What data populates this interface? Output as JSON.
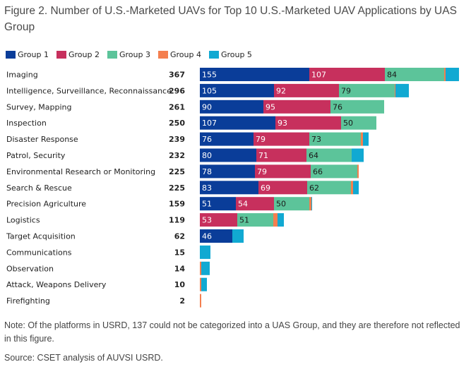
{
  "figure": {
    "title": "Figure 2. Number of U.S.-Marketed UAVs for Top 10 U.S.-Marketed UAV Applications by UAS Group",
    "note": "Note: Of the platforms in USRD, 137 could not be categorized into a UAS Group, and they are therefore not reflected in this figure.",
    "source": "Source: CSET analysis of AUVSI USRD."
  },
  "chart_data": {
    "type": "bar",
    "orientation": "horizontal",
    "stacked": true,
    "title": "Number of U.S.-Marketed UAVs for Top 10 U.S.-Marketed UAV Applications by UAS Group",
    "legend_position": "top-left",
    "categories": [
      "Imaging",
      "Intelligence, Surveillance, Reconnaissance",
      "Survey, Mapping",
      "Inspection",
      "Disaster Response",
      "Patrol, Security",
      "Environmental Research or Monitoring",
      "Search & Rescue",
      "Precision Agriculture",
      "Logistics",
      "Target Acquisition",
      "Communications",
      "Observation",
      "Attack, Weapons Delivery",
      "Firefighting"
    ],
    "totals": [
      "367",
      "296",
      "261",
      "250",
      "239",
      "232",
      "225",
      "225",
      "159",
      "119",
      "62",
      "15",
      "14",
      "10",
      "2"
    ],
    "series": [
      {
        "name": "Group 1",
        "color": "#0a3d99",
        "text_color": "#ffffff",
        "values": [
          155,
          105,
          90,
          107,
          76,
          80,
          78,
          83,
          51,
          0,
          46,
          0,
          0,
          0,
          0
        ],
        "labels": [
          "155",
          "105",
          "90",
          "107",
          "76",
          "80",
          "78",
          "83",
          "51",
          "",
          "46",
          "",
          "",
          "",
          ""
        ]
      },
      {
        "name": "Group 2",
        "color": "#c7305d",
        "text_color": "#ffffff",
        "values": [
          107,
          92,
          95,
          93,
          79,
          71,
          79,
          69,
          54,
          53,
          0,
          0,
          0,
          0,
          0
        ],
        "labels": [
          "107",
          "92",
          "95",
          "93",
          "79",
          "71",
          "79",
          "69",
          "54",
          "53",
          "",
          "",
          "",
          "",
          ""
        ]
      },
      {
        "name": "Group 3",
        "color": "#5cc49a",
        "text_color": "#1a1a1a",
        "values": [
          84,
          79,
          76,
          50,
          73,
          64,
          66,
          62,
          50,
          51,
          0,
          0,
          0,
          0,
          0
        ],
        "labels": [
          "84",
          "79",
          "76",
          "50",
          "73",
          "64",
          "66",
          "62",
          "50",
          "51",
          "",
          "",
          "",
          "",
          ""
        ]
      },
      {
        "name": "Group 4",
        "color": "#f47f4f",
        "text_color": "#1a1a1a",
        "values": [
          2,
          1,
          0,
          0,
          3,
          0,
          2,
          3,
          3,
          6,
          0,
          0,
          2,
          2,
          2
        ],
        "labels": [
          "",
          "",
          "",
          "",
          "",
          "",
          "",
          "",
          "",
          "",
          "",
          "",
          "",
          "",
          ""
        ]
      },
      {
        "name": "Group 5",
        "color": "#11a9d2",
        "text_color": "#1a1a1a",
        "values": [
          19,
          19,
          0,
          0,
          8,
          17,
          0,
          8,
          1,
          9,
          16,
          15,
          12,
          8,
          0
        ],
        "labels": [
          "",
          "",
          "",
          "",
          "",
          "",
          "",
          "",
          "",
          "",
          "",
          "",
          "",
          "",
          ""
        ]
      }
    ]
  }
}
